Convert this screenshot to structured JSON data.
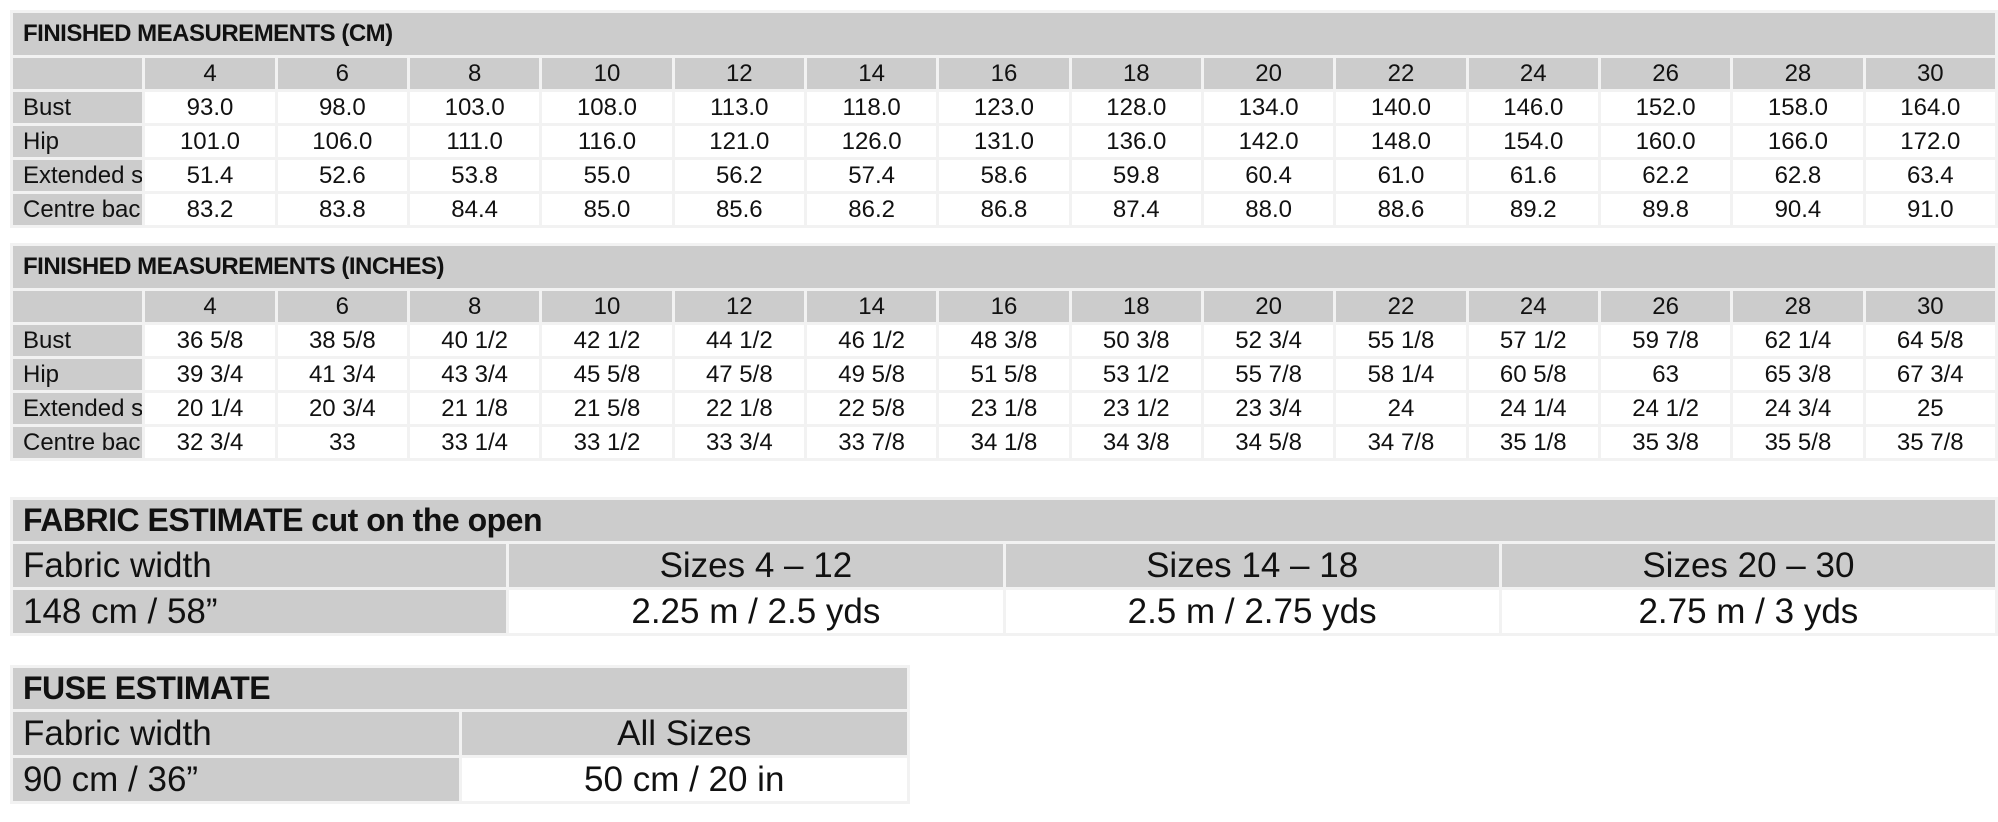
{
  "sizes": [
    "4",
    "6",
    "8",
    "10",
    "12",
    "14",
    "16",
    "18",
    "20",
    "22",
    "24",
    "26",
    "28",
    "30"
  ],
  "cm_table": {
    "title": "FINISHED MEASUREMENTS (CM)",
    "rows": [
      {
        "label": "Bust",
        "values": [
          "93.0",
          "98.0",
          "103.0",
          "108.0",
          "113.0",
          "118.0",
          "123.0",
          "128.0",
          "134.0",
          "140.0",
          "146.0",
          "152.0",
          "158.0",
          "164.0"
        ]
      },
      {
        "label": "Hip",
        "values": [
          "101.0",
          "106.0",
          "111.0",
          "116.0",
          "121.0",
          "126.0",
          "131.0",
          "136.0",
          "142.0",
          "148.0",
          "154.0",
          "160.0",
          "166.0",
          "172.0"
        ]
      },
      {
        "label": "Extended shoulder breadth",
        "values": [
          "51.4",
          "52.6",
          "53.8",
          "55.0",
          "56.2",
          "57.4",
          "58.6",
          "59.8",
          "60.4",
          "61.0",
          "61.6",
          "62.2",
          "62.8",
          "63.4"
        ]
      },
      {
        "label": "Centre back length",
        "values": [
          "83.2",
          "83.8",
          "84.4",
          "85.0",
          "85.6",
          "86.2",
          "86.8",
          "87.4",
          "88.0",
          "88.6",
          "89.2",
          "89.8",
          "90.4",
          "91.0"
        ]
      }
    ]
  },
  "inch_table": {
    "title": "FINISHED MEASUREMENTS (INCHES)",
    "rows": [
      {
        "label": "Bust",
        "values": [
          "36 5/8",
          "38 5/8",
          "40 1/2",
          "42 1/2",
          "44 1/2",
          "46 1/2",
          "48 3/8",
          "50 3/8",
          "52 3/4",
          "55 1/8",
          "57 1/2",
          "59 7/8",
          "62 1/4",
          "64 5/8"
        ]
      },
      {
        "label": "Hip",
        "values": [
          "39 3/4",
          "41 3/4",
          "43 3/4",
          "45 5/8",
          "47 5/8",
          "49 5/8",
          "51 5/8",
          "53 1/2",
          "55 7/8",
          "58 1/4",
          "60 5/8",
          "63",
          "65 3/8",
          "67 3/4"
        ]
      },
      {
        "label": "Extended shoulder breadth",
        "values": [
          "20 1/4",
          "20 3/4",
          "21 1/8",
          "21 5/8",
          "22 1/8",
          "22 5/8",
          "23 1/8",
          "23 1/2",
          "23 3/4",
          "24",
          "24 1/4",
          "24 1/2",
          "24 3/4",
          "25"
        ]
      },
      {
        "label": "Centre back length",
        "values": [
          "32 3/4",
          "33",
          "33 1/4",
          "33 1/2",
          "33 3/4",
          "33 7/8",
          "34 1/8",
          "34 3/8",
          "34 5/8",
          "34 7/8",
          "35 1/8",
          "35 3/8",
          "35 5/8",
          "35 7/8"
        ]
      }
    ]
  },
  "fabric_estimate": {
    "title": "FABRIC ESTIMATE cut on the open",
    "header_label": "Fabric width",
    "headers": [
      "Sizes 4 – 12",
      "Sizes 14 – 18",
      "Sizes 20 – 30"
    ],
    "row_label": "148 cm / 58”",
    "values": [
      "2.25 m / 2.5 yds",
      "2.5 m / 2.75 yds",
      "2.75 m / 3 yds"
    ]
  },
  "fuse_estimate": {
    "title": "FUSE ESTIMATE",
    "header_label": "Fabric width",
    "headers": [
      "All Sizes"
    ],
    "row_label": "90 cm / 36”",
    "values": [
      "50 cm / 20 in"
    ]
  }
}
